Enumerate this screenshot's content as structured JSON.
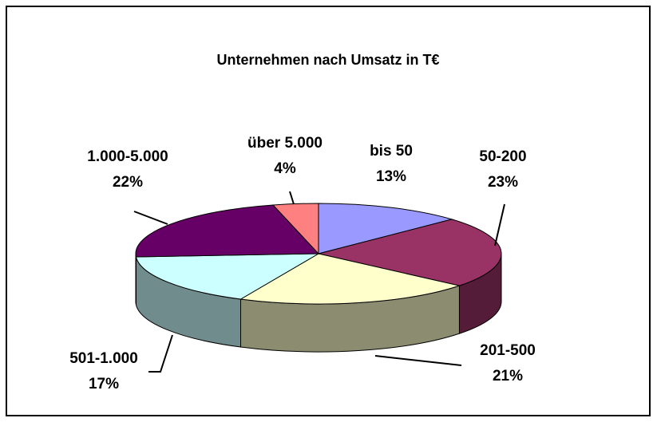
{
  "chart_data": {
    "type": "pie",
    "title": "Unternehmen nach Umsatz in T€",
    "categories": [
      "bis 50",
      "50-200",
      "201-500",
      "501-1.000",
      "1.000-5.000",
      "über 5.000"
    ],
    "values": [
      13,
      23,
      21,
      17,
      22,
      4
    ],
    "value_labels": [
      "13%",
      "23%",
      "21%",
      "17%",
      "22%",
      "4%"
    ],
    "colors": [
      "#9999ff",
      "#993366",
      "#ffffcc",
      "#ccffff",
      "#660066",
      "#ff8080"
    ]
  }
}
